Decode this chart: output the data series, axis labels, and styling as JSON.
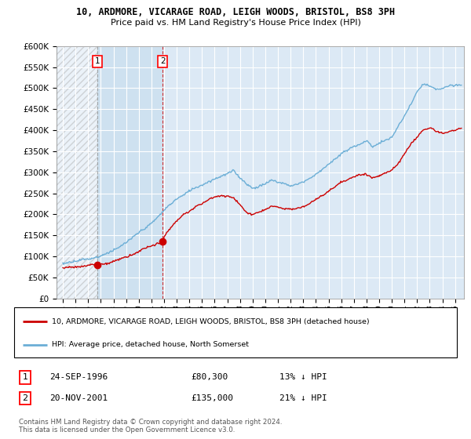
{
  "title_line1": "10, ARDMORE, VICARAGE ROAD, LEIGH WOODS, BRISTOL, BS8 3PH",
  "title_line2": "Price paid vs. HM Land Registry's House Price Index (HPI)",
  "ylabel_ticks": [
    "£0",
    "£50K",
    "£100K",
    "£150K",
    "£200K",
    "£250K",
    "£300K",
    "£350K",
    "£400K",
    "£450K",
    "£500K",
    "£550K",
    "£600K"
  ],
  "ytick_values": [
    0,
    50000,
    100000,
    150000,
    200000,
    250000,
    300000,
    350000,
    400000,
    450000,
    500000,
    550000,
    600000
  ],
  "ylim": [
    0,
    590000
  ],
  "xlim_start": 1993.5,
  "xlim_end": 2025.7,
  "hpi_color": "#6baed6",
  "price_color": "#cc0000",
  "background_color": "#dce9f5",
  "grid_color": "#ffffff",
  "sale1_year": 1996.73,
  "sale1_price": 80300,
  "sale1_label": "1",
  "sale1_date": "24-SEP-1996",
  "sale1_pct": "13% ↓ HPI",
  "sale2_year": 2001.9,
  "sale2_price": 135000,
  "sale2_label": "2",
  "sale2_date": "20-NOV-2001",
  "sale2_pct": "21% ↓ HPI",
  "legend_line1": "10, ARDMORE, VICARAGE ROAD, LEIGH WOODS, BRISTOL, BS8 3PH (detached house)",
  "legend_line2": "HPI: Average price, detached house, North Somerset",
  "footnote": "Contains HM Land Registry data © Crown copyright and database right 2024.\nThis data is licensed under the Open Government Licence v3.0.",
  "xticks": [
    1994,
    1995,
    1996,
    1997,
    1998,
    1999,
    2000,
    2001,
    2002,
    2003,
    2004,
    2005,
    2006,
    2007,
    2008,
    2009,
    2010,
    2011,
    2012,
    2013,
    2014,
    2015,
    2016,
    2017,
    2018,
    2019,
    2020,
    2021,
    2022,
    2023,
    2024,
    2025
  ],
  "shaded_region_color": "#cce0f0",
  "hatch_color": "#cccccc"
}
